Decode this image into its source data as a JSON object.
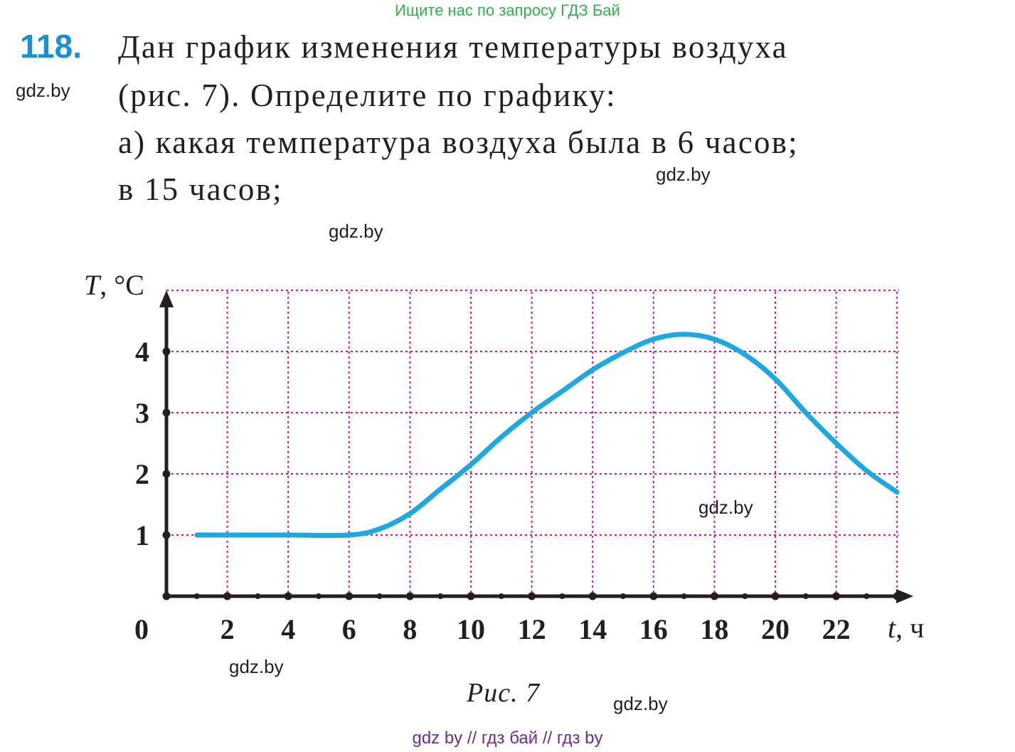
{
  "banner": "Ищите нас по запросу ГДЗ Бай",
  "problem": {
    "number": "118.",
    "lines": [
      "Дан график изменения температуры воздуха",
      "(рис. 7). Определите по графику:",
      "а) какая температура воздуха была в 6 часов;",
      "в 15 часов;"
    ]
  },
  "watermarks": [
    "gdz.by",
    "gdz.by",
    "gdz.by",
    "gdz.by",
    "gdz.by",
    "gdz.by"
  ],
  "caption": "Рис. 7",
  "footer": "gdz by  //  гдз бай  //  гдз by",
  "colors": {
    "curve": "#1ea8e0",
    "grid": "#d4148c",
    "axis": "#231f20",
    "number": "#1a8fd3",
    "banner": "#2db34a",
    "footer": "#6b2c91"
  },
  "chart_data": {
    "type": "line",
    "xlabel_var": "t",
    "xlabel_unit": ", ч",
    "ylabel_var": "T",
    "ylabel_unit": ", °C",
    "origin_label": "0",
    "xlim": [
      0,
      24
    ],
    "ylim": [
      0,
      5
    ],
    "x_ticks": [
      2,
      4,
      6,
      8,
      10,
      12,
      14,
      16,
      18,
      20,
      22
    ],
    "y_ticks": [
      1,
      2,
      3,
      4
    ],
    "grid": true,
    "series": [
      {
        "x": [
          1,
          2,
          4,
          6,
          7,
          8,
          9,
          10,
          11,
          12,
          13,
          14,
          15,
          16,
          17,
          18,
          19,
          20,
          21,
          22,
          23,
          24
        ],
        "y": [
          1,
          1,
          1,
          1,
          1.1,
          1.35,
          1.75,
          2.15,
          2.6,
          3.0,
          3.35,
          3.7,
          3.98,
          4.2,
          4.28,
          4.2,
          3.95,
          3.55,
          3.0,
          2.5,
          2.05,
          1.7
        ]
      }
    ]
  }
}
